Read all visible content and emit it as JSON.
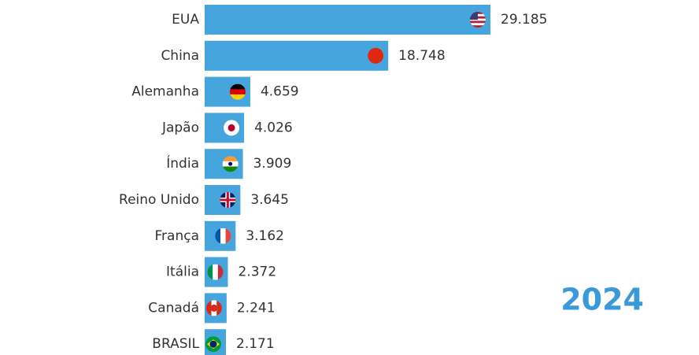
{
  "chart_data": {
    "type": "bar",
    "orientation": "horizontal",
    "categories": [
      "EUA",
      "China",
      "Alemanha",
      "Japão",
      "Índia",
      "Reino Unido",
      "França",
      "Itália",
      "Canadá",
      "BRASIL"
    ],
    "values": [
      29.185,
      18.748,
      4.659,
      4.026,
      3.909,
      3.645,
      3.162,
      2.372,
      2.241,
      2.171
    ],
    "color": "#47a5de",
    "annotation": "2024"
  }
}
